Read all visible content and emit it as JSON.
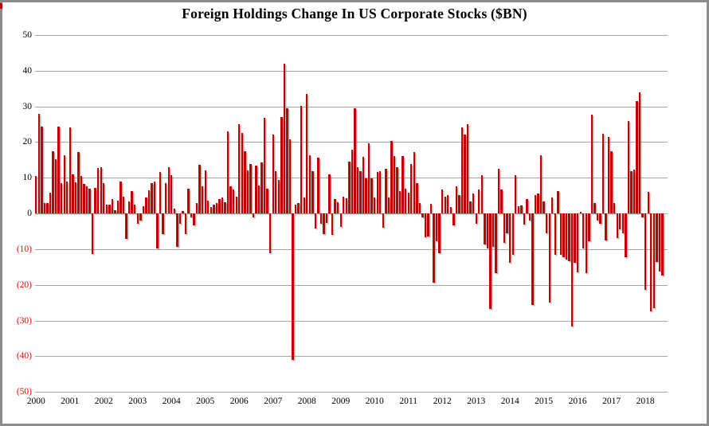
{
  "title": "Foreign Holdings Change In US Corporate Stocks ($BN)",
  "colors": {
    "bar": "#c00000",
    "gridline": "#a6a6a6",
    "axis_label": "#000000",
    "negative_axis_label": "#ff0000",
    "frame_border": "#8c8c8c",
    "background": "#ffffff"
  },
  "y_axis": {
    "tick_values": [
      50,
      40,
      30,
      20,
      10,
      0,
      -10,
      -20,
      -30,
      -40,
      -50
    ],
    "tick_labels": [
      "50",
      "40",
      "30",
      "20",
      "10",
      "0",
      "(10)",
      "(20)",
      "(30)",
      "(40)",
      "(50)"
    ]
  },
  "x_axis": {
    "year_labels": [
      "2000",
      "2001",
      "2002",
      "2003",
      "2004",
      "2005",
      "2006",
      "2007",
      "2008",
      "2009",
      "2010",
      "2011",
      "2012",
      "2013",
      "2014",
      "2015",
      "2016",
      "2017",
      "2018"
    ]
  },
  "chart_data": {
    "type": "bar",
    "title": "Foreign Holdings Change In US Corporate Stocks ($BN)",
    "xlabel": "",
    "ylabel": "",
    "ylim": [
      -50,
      50
    ],
    "grid": true,
    "x_start": "2000-01",
    "x_freq": "monthly",
    "values": [
      10.4,
      27.8,
      24.3,
      3.0,
      3.0,
      5.9,
      17.5,
      15.1,
      24.3,
      8.5,
      16.2,
      9.0,
      24.0,
      11.0,
      8.7,
      17.3,
      10.5,
      8.2,
      7.6,
      6.9,
      -11.3,
      7.1,
      12.7,
      13.0,
      8.4,
      2.4,
      2.4,
      4.0,
      1.0,
      3.6,
      9.0,
      4.7,
      -7.1,
      3.3,
      6.2,
      2.5,
      -3.0,
      -1.9,
      2.1,
      4.4,
      6.4,
      8.4,
      9.0,
      -9.7,
      11.6,
      -5.7,
      8.6,
      12.9,
      10.7,
      1.3,
      -9.4,
      -2.8,
      0.7,
      -5.7,
      7.0,
      -1.2,
      -3.3,
      2.9,
      13.6,
      7.7,
      12.1,
      3.6,
      1.8,
      2.5,
      2.9,
      4.0,
      4.4,
      3.1,
      23.0,
      7.7,
      6.6,
      4.7,
      25.1,
      22.5,
      17.5,
      12.1,
      13.9,
      -1.0,
      13.5,
      7.8,
      14.2,
      26.7,
      7.0,
      -11.2,
      22.1,
      11.9,
      9.4,
      27.0,
      41.9,
      29.5,
      20.8,
      -41.0,
      2.5,
      2.9,
      30.1,
      4.4,
      33.4,
      16.4,
      11.8,
      -4.2,
      15.6,
      -3.0,
      -5.7,
      -2.7,
      11.0,
      -6.1,
      4.0,
      3.1,
      -3.8,
      4.6,
      4.3,
      14.6,
      17.8,
      29.5,
      13.0,
      11.9,
      15.9,
      9.8,
      19.6,
      9.9,
      4.4,
      11.6,
      11.8,
      -4.1,
      12.4,
      4.4,
      20.4,
      16.0,
      12.9,
      6.2,
      16.0,
      7.0,
      5.9,
      13.8,
      17.3,
      8.6,
      2.9,
      -1.2,
      -6.7,
      -6.4,
      2.7,
      -19.3,
      -7.9,
      -11.2,
      6.7,
      4.7,
      5.1,
      1.9,
      -3.4,
      7.7,
      5.1,
      24.1,
      22.1,
      25.1,
      3.3,
      5.5,
      -3.0,
      6.6,
      10.7,
      -8.6,
      -9.7,
      -26.7,
      -9.3,
      -16.7,
      12.5,
      6.7,
      -8.2,
      -5.6,
      -13.8,
      -11.6,
      10.7,
      2.1,
      2.3,
      -3.2,
      4.0,
      -1.9,
      -25.6,
      5.1,
      5.6,
      16.2,
      3.3,
      -5.6,
      -24.9,
      4.4,
      -11.6,
      6.2,
      -11.6,
      -12.3,
      -12.9,
      -13.4,
      -31.7,
      -13.8,
      -16.4,
      0.5,
      -9.7,
      -16.7,
      -7.9,
      27.7,
      2.9,
      -1.9,
      -3.0,
      22.4,
      -7.5,
      21.5,
      17.4,
      3.0,
      -7.0,
      -4.5,
      -5.6,
      -12.3,
      25.9,
      11.8,
      12.3,
      31.4,
      34.0,
      -1.0,
      -21.5,
      6.0,
      -27.5,
      -26.5,
      -13.5,
      -16.2,
      -17.5
    ]
  }
}
